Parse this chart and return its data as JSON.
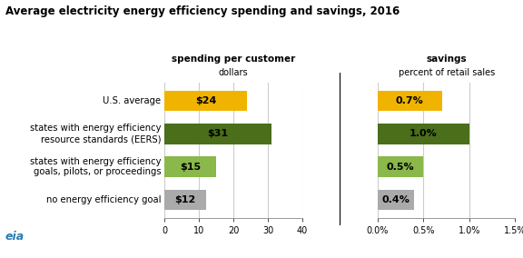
{
  "title": "Average electricity energy efficiency spending and savings, 2016",
  "categories": [
    "U.S. average",
    "states with energy efficiency\nresource standards (EERS)",
    "states with energy efficiency\ngoals, pilots, or proceedings",
    "no energy efficiency goal"
  ],
  "spending_values": [
    24,
    31,
    15,
    12
  ],
  "savings_values": [
    0.7,
    1.0,
    0.5,
    0.4
  ],
  "spending_labels": [
    "$24",
    "$31",
    "$15",
    "$12"
  ],
  "savings_labels": [
    "0.7%",
    "1.0%",
    "0.5%",
    "0.4%"
  ],
  "bar_colors": [
    "#f0b400",
    "#4a6e1a",
    "#8ab84a",
    "#aaaaaa"
  ],
  "spending_title": "spending per customer",
  "spending_subtitle": "dollars",
  "savings_title": "savings",
  "savings_subtitle": "percent of retail sales",
  "spending_xlim": [
    0,
    40
  ],
  "savings_xlim": [
    0,
    1.5
  ],
  "spending_xticks": [
    0,
    10,
    20,
    30,
    40
  ],
  "savings_xticks": [
    0.0,
    0.5,
    1.0,
    1.5
  ],
  "savings_xtick_labels": [
    "0.0%",
    "0.5%",
    "1.0%",
    "1.5%"
  ],
  "bg_color": "#ffffff",
  "grid_color": "#cccccc",
  "eia_text": "eia",
  "eia_color": "#2a7db5"
}
